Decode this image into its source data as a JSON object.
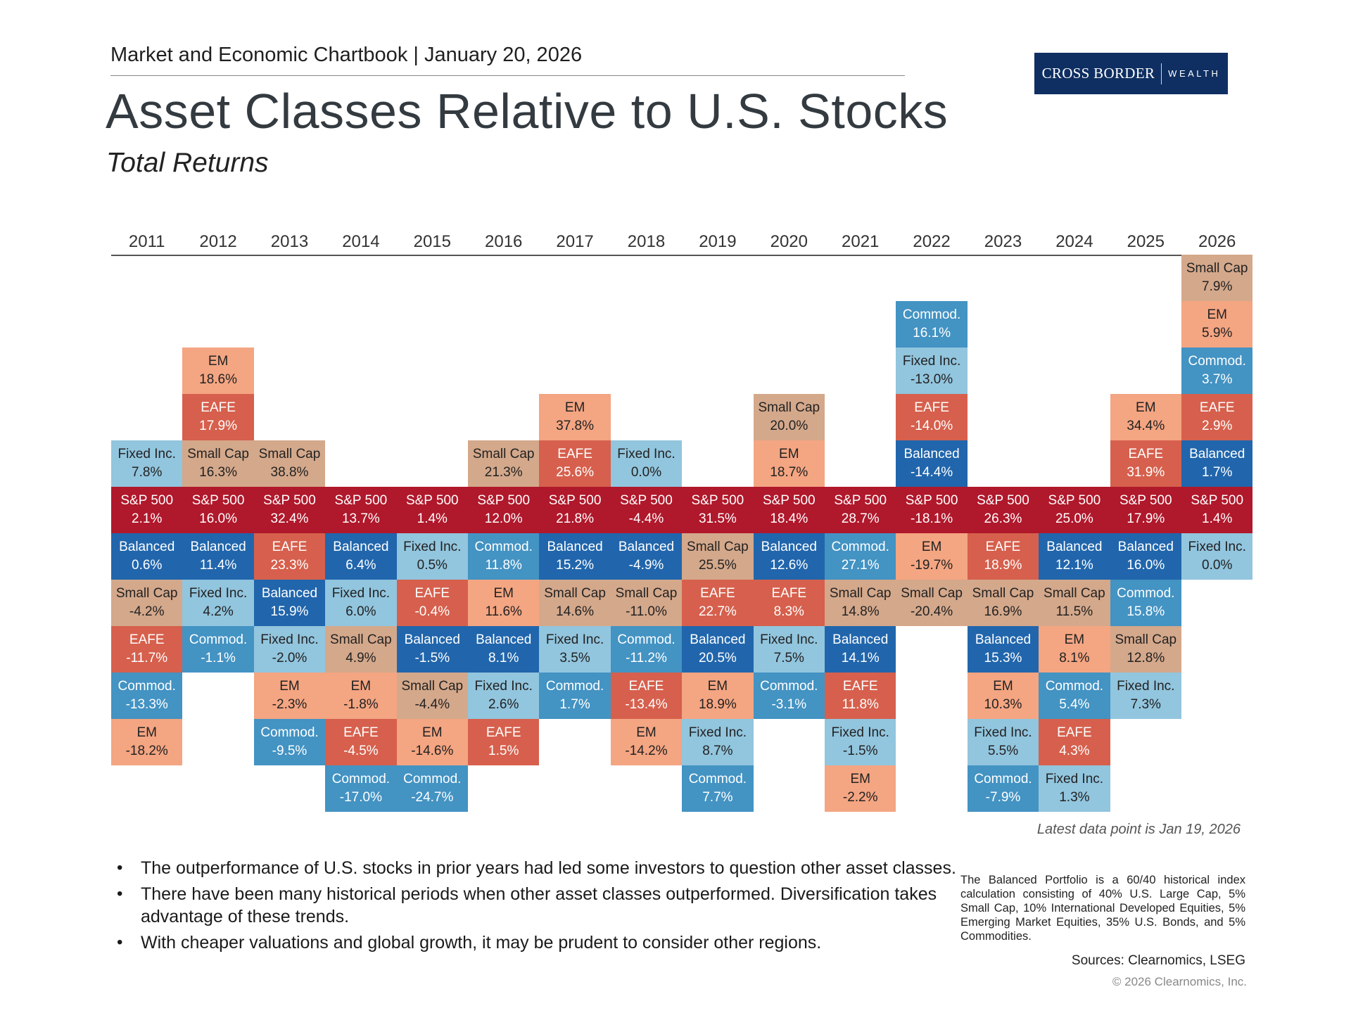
{
  "header": {
    "kicker": "Market and Economic Chartbook | January 20, 2026",
    "title": "Asset Classes Relative to U.S. Stocks",
    "subtitle": "Total Returns",
    "logo": {
      "primary": "CROSS BORDER",
      "secondary": "WEALTH",
      "background": "#0f2f62"
    }
  },
  "chart_data": {
    "type": "table",
    "title": "Asset Classes Relative to U.S. Stocks",
    "subtitle": "Total Returns",
    "anchor_asset": "S&P 500",
    "asset_colors": {
      "S&P 500": {
        "bg": "#b0182b",
        "fg": "#ffffff"
      },
      "Balanced": {
        "bg": "#2166ac",
        "fg": "#ffffff"
      },
      "EAFE": {
        "bg": "#d6604d",
        "fg": "#ffffff"
      },
      "EM": {
        "bg": "#f4a582",
        "fg": "#222222"
      },
      "Small Cap": {
        "bg": "#d4a88b",
        "fg": "#222222"
      },
      "Fixed Inc.": {
        "bg": "#92c5de",
        "fg": "#222222"
      },
      "Commod.": {
        "bg": "#4393c3",
        "fg": "#ffffff"
      }
    },
    "years": [
      {
        "year": "2011",
        "cells": [
          [
            "Fixed Inc.",
            "7.8%"
          ],
          [
            "S&P 500",
            "2.1%"
          ],
          [
            "Balanced",
            "0.6%"
          ],
          [
            "Small Cap",
            "-4.2%"
          ],
          [
            "EAFE",
            "-11.7%"
          ],
          [
            "Commod.",
            "-13.3%"
          ],
          [
            "EM",
            "-18.2%"
          ]
        ]
      },
      {
        "year": "2012",
        "cells": [
          [
            "EM",
            "18.6%"
          ],
          [
            "EAFE",
            "17.9%"
          ],
          [
            "Small Cap",
            "16.3%"
          ],
          [
            "S&P 500",
            "16.0%"
          ],
          [
            "Balanced",
            "11.4%"
          ],
          [
            "Fixed Inc.",
            "4.2%"
          ],
          [
            "Commod.",
            "-1.1%"
          ]
        ]
      },
      {
        "year": "2013",
        "cells": [
          [
            "Small Cap",
            "38.8%"
          ],
          [
            "S&P 500",
            "32.4%"
          ],
          [
            "EAFE",
            "23.3%"
          ],
          [
            "Balanced",
            "15.9%"
          ],
          [
            "Fixed Inc.",
            "-2.0%"
          ],
          [
            "EM",
            "-2.3%"
          ],
          [
            "Commod.",
            "-9.5%"
          ]
        ]
      },
      {
        "year": "2014",
        "cells": [
          [
            "S&P 500",
            "13.7%"
          ],
          [
            "Balanced",
            "6.4%"
          ],
          [
            "Fixed Inc.",
            "6.0%"
          ],
          [
            "Small Cap",
            "4.9%"
          ],
          [
            "EM",
            "-1.8%"
          ],
          [
            "EAFE",
            "-4.5%"
          ],
          [
            "Commod.",
            "-17.0%"
          ]
        ]
      },
      {
        "year": "2015",
        "cells": [
          [
            "S&P 500",
            "1.4%"
          ],
          [
            "Fixed Inc.",
            "0.5%"
          ],
          [
            "EAFE",
            "-0.4%"
          ],
          [
            "Balanced",
            "-1.5%"
          ],
          [
            "Small Cap",
            "-4.4%"
          ],
          [
            "EM",
            "-14.6%"
          ],
          [
            "Commod.",
            "-24.7%"
          ]
        ]
      },
      {
        "year": "2016",
        "cells": [
          [
            "Small Cap",
            "21.3%"
          ],
          [
            "S&P 500",
            "12.0%"
          ],
          [
            "Commod.",
            "11.8%"
          ],
          [
            "EM",
            "11.6%"
          ],
          [
            "Balanced",
            "8.1%"
          ],
          [
            "Fixed Inc.",
            "2.6%"
          ],
          [
            "EAFE",
            "1.5%"
          ]
        ]
      },
      {
        "year": "2017",
        "cells": [
          [
            "EM",
            "37.8%"
          ],
          [
            "EAFE",
            "25.6%"
          ],
          [
            "S&P 500",
            "21.8%"
          ],
          [
            "Balanced",
            "15.2%"
          ],
          [
            "Small Cap",
            "14.6%"
          ],
          [
            "Fixed Inc.",
            "3.5%"
          ],
          [
            "Commod.",
            "1.7%"
          ]
        ]
      },
      {
        "year": "2018",
        "cells": [
          [
            "Fixed Inc.",
            "0.0%"
          ],
          [
            "S&P 500",
            "-4.4%"
          ],
          [
            "Balanced",
            "-4.9%"
          ],
          [
            "Small Cap",
            "-11.0%"
          ],
          [
            "Commod.",
            "-11.2%"
          ],
          [
            "EAFE",
            "-13.4%"
          ],
          [
            "EM",
            "-14.2%"
          ]
        ]
      },
      {
        "year": "2019",
        "cells": [
          [
            "S&P 500",
            "31.5%"
          ],
          [
            "Small Cap",
            "25.5%"
          ],
          [
            "EAFE",
            "22.7%"
          ],
          [
            "Balanced",
            "20.5%"
          ],
          [
            "EM",
            "18.9%"
          ],
          [
            "Fixed Inc.",
            "8.7%"
          ],
          [
            "Commod.",
            "7.7%"
          ]
        ]
      },
      {
        "year": "2020",
        "cells": [
          [
            "Small Cap",
            "20.0%"
          ],
          [
            "EM",
            "18.7%"
          ],
          [
            "S&P 500",
            "18.4%"
          ],
          [
            "Balanced",
            "12.6%"
          ],
          [
            "EAFE",
            "8.3%"
          ],
          [
            "Fixed Inc.",
            "7.5%"
          ],
          [
            "Commod.",
            "-3.1%"
          ]
        ]
      },
      {
        "year": "2021",
        "cells": [
          [
            "S&P 500",
            "28.7%"
          ],
          [
            "Commod.",
            "27.1%"
          ],
          [
            "Small Cap",
            "14.8%"
          ],
          [
            "Balanced",
            "14.1%"
          ],
          [
            "EAFE",
            "11.8%"
          ],
          [
            "Fixed Inc.",
            "-1.5%"
          ],
          [
            "EM",
            "-2.2%"
          ]
        ]
      },
      {
        "year": "2022",
        "cells": [
          [
            "Commod.",
            "16.1%"
          ],
          [
            "Fixed Inc.",
            "-13.0%"
          ],
          [
            "EAFE",
            "-14.0%"
          ],
          [
            "Balanced",
            "-14.4%"
          ],
          [
            "S&P 500",
            "-18.1%"
          ],
          [
            "EM",
            "-19.7%"
          ],
          [
            "Small Cap",
            "-20.4%"
          ]
        ]
      },
      {
        "year": "2023",
        "cells": [
          [
            "S&P 500",
            "26.3%"
          ],
          [
            "EAFE",
            "18.9%"
          ],
          [
            "Small Cap",
            "16.9%"
          ],
          [
            "Balanced",
            "15.3%"
          ],
          [
            "EM",
            "10.3%"
          ],
          [
            "Fixed Inc.",
            "5.5%"
          ],
          [
            "Commod.",
            "-7.9%"
          ]
        ]
      },
      {
        "year": "2024",
        "cells": [
          [
            "S&P 500",
            "25.0%"
          ],
          [
            "Balanced",
            "12.1%"
          ],
          [
            "Small Cap",
            "11.5%"
          ],
          [
            "EM",
            "8.1%"
          ],
          [
            "Commod.",
            "5.4%"
          ],
          [
            "EAFE",
            "4.3%"
          ],
          [
            "Fixed Inc.",
            "1.3%"
          ]
        ]
      },
      {
        "year": "2025",
        "cells": [
          [
            "EM",
            "34.4%"
          ],
          [
            "EAFE",
            "31.9%"
          ],
          [
            "S&P 500",
            "17.9%"
          ],
          [
            "Balanced",
            "16.0%"
          ],
          [
            "Commod.",
            "15.8%"
          ],
          [
            "Small Cap",
            "12.8%"
          ],
          [
            "Fixed Inc.",
            "7.3%"
          ]
        ]
      },
      {
        "year": "2026",
        "cells": [
          [
            "Small Cap",
            "7.9%"
          ],
          [
            "EM",
            "5.9%"
          ],
          [
            "Commod.",
            "3.7%"
          ],
          [
            "EAFE",
            "2.9%"
          ],
          [
            "Balanced",
            "1.7%"
          ],
          [
            "S&P 500",
            "1.4%"
          ],
          [
            "Fixed Inc.",
            "0.0%"
          ]
        ]
      }
    ]
  },
  "note": "Latest data point is Jan 19, 2026",
  "bullets": [
    "The outperformance of U.S. stocks in prior years had led some investors to question other asset classes.",
    "There have been many historical periods when other asset classes outperformed. Diversification takes advantage of these trends.",
    "With cheaper valuations and global growth, it may be prudent to consider other regions."
  ],
  "footnote": "The Balanced Portfolio is a 60/40 historical index calculation consisting of 40% U.S. Large Cap, 5% Small Cap, 10% International Developed Equities, 5% Emerging Market Equities, 35% U.S. Bonds, and 5% Commodities.",
  "sources": "Sources: Clearnomics, LSEG",
  "copyright": "© 2026 Clearnomics, Inc."
}
